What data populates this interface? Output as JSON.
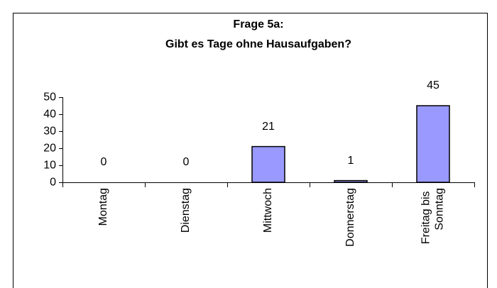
{
  "chart_data": {
    "type": "bar",
    "title": "Frage 5a:",
    "subtitle": "Gibt es Tage ohne Hausaufgaben?",
    "categories": [
      "Montag",
      "Dienstag",
      "Mittwoch",
      "Donnerstag",
      "Freitag bis Sonntag"
    ],
    "values": [
      0,
      0,
      21,
      1,
      45
    ],
    "color": "#9999ff",
    "ylim": [
      0,
      50
    ],
    "yticks": [
      0,
      10,
      20,
      30,
      40,
      50
    ],
    "grid": false
  }
}
